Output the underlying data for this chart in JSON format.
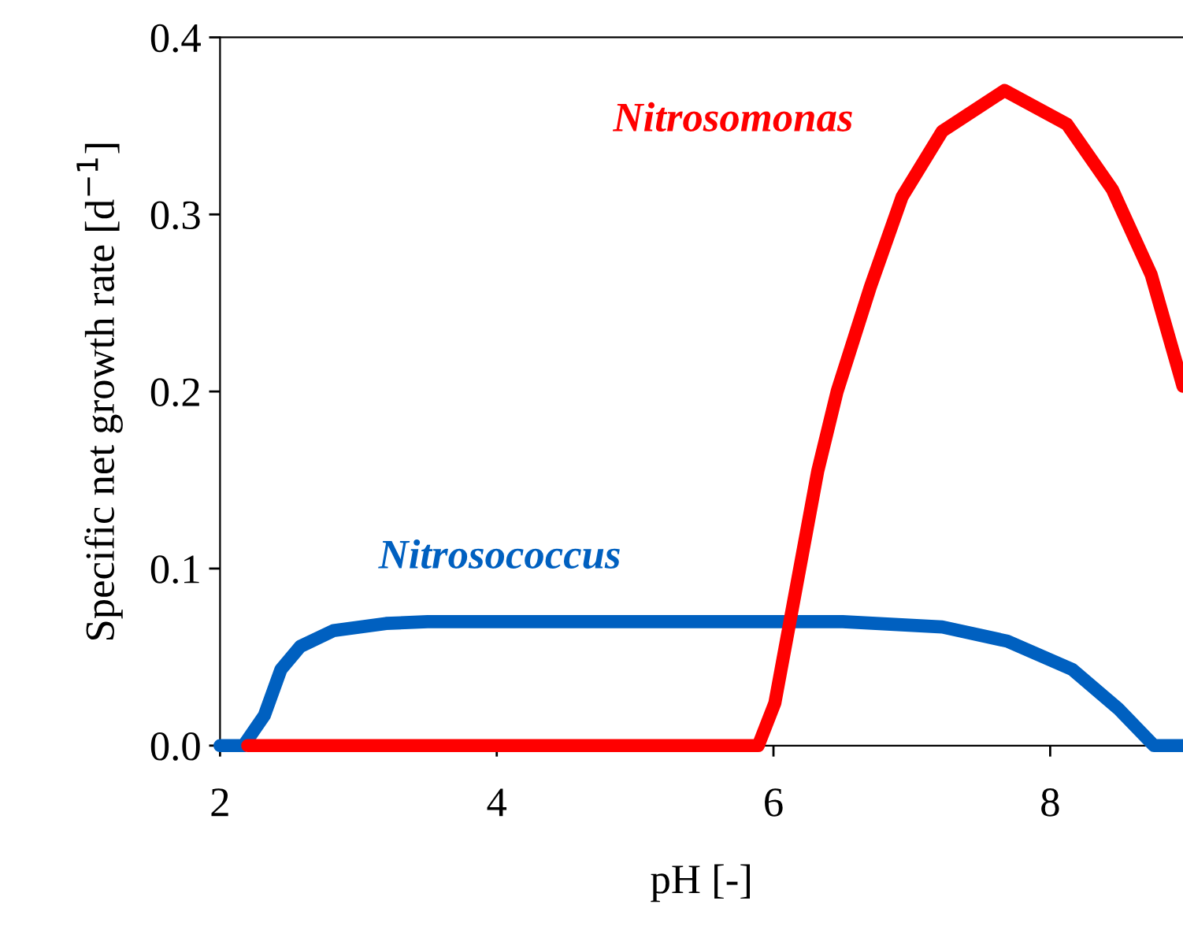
{
  "chart_data": {
    "type": "line",
    "xlabel": "pH [-]",
    "ylabel": "Specific net growth rate [d$^{−1}$]",
    "xlim": [
      2,
      8.96
    ],
    "ylim": [
      0,
      0.4
    ],
    "xticks": [
      2,
      4,
      6,
      8
    ],
    "yticks": [
      {
        "value": 0,
        "label": "0.0"
      },
      {
        "value": 0.1,
        "label": "0.1"
      },
      {
        "value": 0.2,
        "label": "0.2"
      },
      {
        "value": 0.3,
        "label": "0.3"
      },
      {
        "value": 0.4,
        "label": "0.4"
      }
    ],
    "grid": false,
    "legend": false,
    "marker": "none",
    "line_style": "solid",
    "series": [
      {
        "name": "Nitrosococcus",
        "color": "#0060c0",
        "x": [
          2,
          2.17,
          2.32,
          2.44,
          2.58,
          2.82,
          3.2,
          3.5,
          4,
          4.5,
          5,
          5.5,
          6,
          6.5,
          6.74,
          7.22,
          7.69,
          8.16,
          8.49,
          8.75,
          8.96
        ],
        "values": [
          0,
          0,
          0.017,
          0.043,
          0.056,
          0.065,
          0.069,
          0.07,
          0.07,
          0.07,
          0.07,
          0.07,
          0.07,
          0.07,
          0.069,
          0.067,
          0.059,
          0.043,
          0.021,
          0,
          0
        ]
      },
      {
        "name": "Nitrosomonas",
        "color": "#ff0000",
        "x": [
          2.2,
          5.89,
          6.01,
          6.32,
          6.46,
          6.7,
          6.93,
          7.22,
          7.67,
          8.12,
          8.45,
          8.73,
          8.96
        ],
        "values": [
          0,
          0,
          0.024,
          0.155,
          0.2,
          0.259,
          0.31,
          0.347,
          0.37,
          0.351,
          0.314,
          0.266,
          0.203
        ]
      }
    ]
  }
}
